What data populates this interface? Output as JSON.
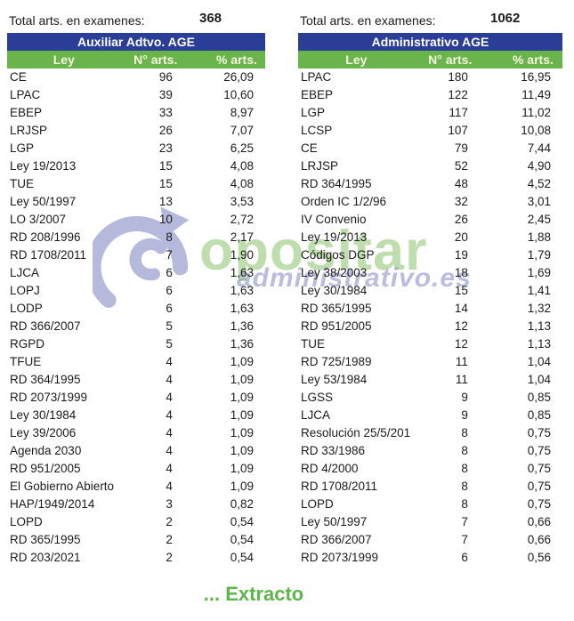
{
  "watermark": {
    "logo": "opositar-swirl-logo",
    "line1": "opositar",
    "line2": "administrativo.es",
    "logo_color": "#a9afd6",
    "line1_color": "#7ebe5c",
    "line2_color": "#8a93cc"
  },
  "tables": [
    {
      "total_label": "Total arts. en examenes:",
      "total_value": "368",
      "title": "Auxiliar Adtvo. AGE",
      "columns": [
        "Ley",
        "N° arts.",
        "% arts."
      ],
      "rows": [
        [
          "CE",
          "96",
          "26,09"
        ],
        [
          "LPAC",
          "39",
          "10,60"
        ],
        [
          "EBEP",
          "33",
          "8,97"
        ],
        [
          "LRJSP",
          "26",
          "7,07"
        ],
        [
          "LGP",
          "23",
          "6,25"
        ],
        [
          "Ley 19/2013",
          "15",
          "4,08"
        ],
        [
          "TUE",
          "15",
          "4,08"
        ],
        [
          "Ley 50/1997",
          "13",
          "3,53"
        ],
        [
          "LO 3/2007",
          "10",
          "2,72"
        ],
        [
          "RD 208/1996",
          "8",
          "2,17"
        ],
        [
          "RD 1708/2011",
          "7",
          "1,90"
        ],
        [
          "LJCA",
          "6",
          "1,63"
        ],
        [
          "LOPJ",
          "6",
          "1,63"
        ],
        [
          "LODP",
          "6",
          "1,63"
        ],
        [
          "RD 366/2007",
          "5",
          "1,36"
        ],
        [
          "RGPD",
          "5",
          "1,36"
        ],
        [
          "TFUE",
          "4",
          "1,09"
        ],
        [
          "RD 364/1995",
          "4",
          "1,09"
        ],
        [
          "RD 2073/1999",
          "4",
          "1,09"
        ],
        [
          "Ley 30/1984",
          "4",
          "1,09"
        ],
        [
          "Ley 39/2006",
          "4",
          "1,09"
        ],
        [
          "Agenda 2030",
          "4",
          "1,09"
        ],
        [
          "RD 951/2005",
          "4",
          "1,09"
        ],
        [
          "El Gobierno Abierto",
          "4",
          "1,09"
        ],
        [
          "HAP/1949/2014",
          "3",
          "0,82"
        ],
        [
          "LOPD",
          "2",
          "0,54"
        ],
        [
          "RD 365/1995",
          "2",
          "0,54"
        ],
        [
          "RD 203/2021",
          "2",
          "0,54"
        ]
      ]
    },
    {
      "total_label": "Total arts. en examenes:",
      "total_value": "1062",
      "title": "Administrativo AGE",
      "columns": [
        "Ley",
        "N° arts.",
        "% arts."
      ],
      "rows": [
        [
          "LPAC",
          "180",
          "16,95"
        ],
        [
          "EBEP",
          "122",
          "11,49"
        ],
        [
          "LGP",
          "117",
          "11,02"
        ],
        [
          "LCSP",
          "107",
          "10,08"
        ],
        [
          "CE",
          "79",
          "7,44"
        ],
        [
          "LRJSP",
          "52",
          "4,90"
        ],
        [
          "RD 364/1995",
          "48",
          "4,52"
        ],
        [
          "Orden IC 1/2/96",
          "32",
          "3,01"
        ],
        [
          "IV Convenio",
          "26",
          "2,45"
        ],
        [
          "Ley 19/2013",
          "20",
          "1,88"
        ],
        [
          "Códigos DGP",
          "19",
          "1,79"
        ],
        [
          "Ley 38/2003",
          "18",
          "1,69"
        ],
        [
          "Ley 30/1984",
          "15",
          "1,41"
        ],
        [
          "RD 365/1995",
          "14",
          "1,32"
        ],
        [
          "RD 951/2005",
          "12",
          "1,13"
        ],
        [
          "TUE",
          "12",
          "1,13"
        ],
        [
          "RD 725/1989",
          "11",
          "1,04"
        ],
        [
          "Ley 53/1984",
          "11",
          "1,04"
        ],
        [
          "LGSS",
          "9",
          "0,85"
        ],
        [
          "LJCA",
          "9",
          "0,85"
        ],
        [
          "Resolución 25/5/201",
          "8",
          "0,75"
        ],
        [
          "RD 33/1986",
          "8",
          "0,75"
        ],
        [
          "RD 4/2000",
          "8",
          "0,75"
        ],
        [
          "RD 1708/2011",
          "8",
          "0,75"
        ],
        [
          "LOPD",
          "8",
          "0,75"
        ],
        [
          "Ley 50/1997",
          "7",
          "0,66"
        ],
        [
          "RD 366/2007",
          "7",
          "0,66"
        ],
        [
          "RD 2073/1999",
          "6",
          "0,56"
        ]
      ]
    }
  ],
  "footer": {
    "extract_label": "... Extracto"
  },
  "colors": {
    "header_blue": "#2b3e97",
    "header_green": "#69b44b",
    "header_green_text": "#f7f7dd",
    "extract_green": "#5cb64a"
  }
}
